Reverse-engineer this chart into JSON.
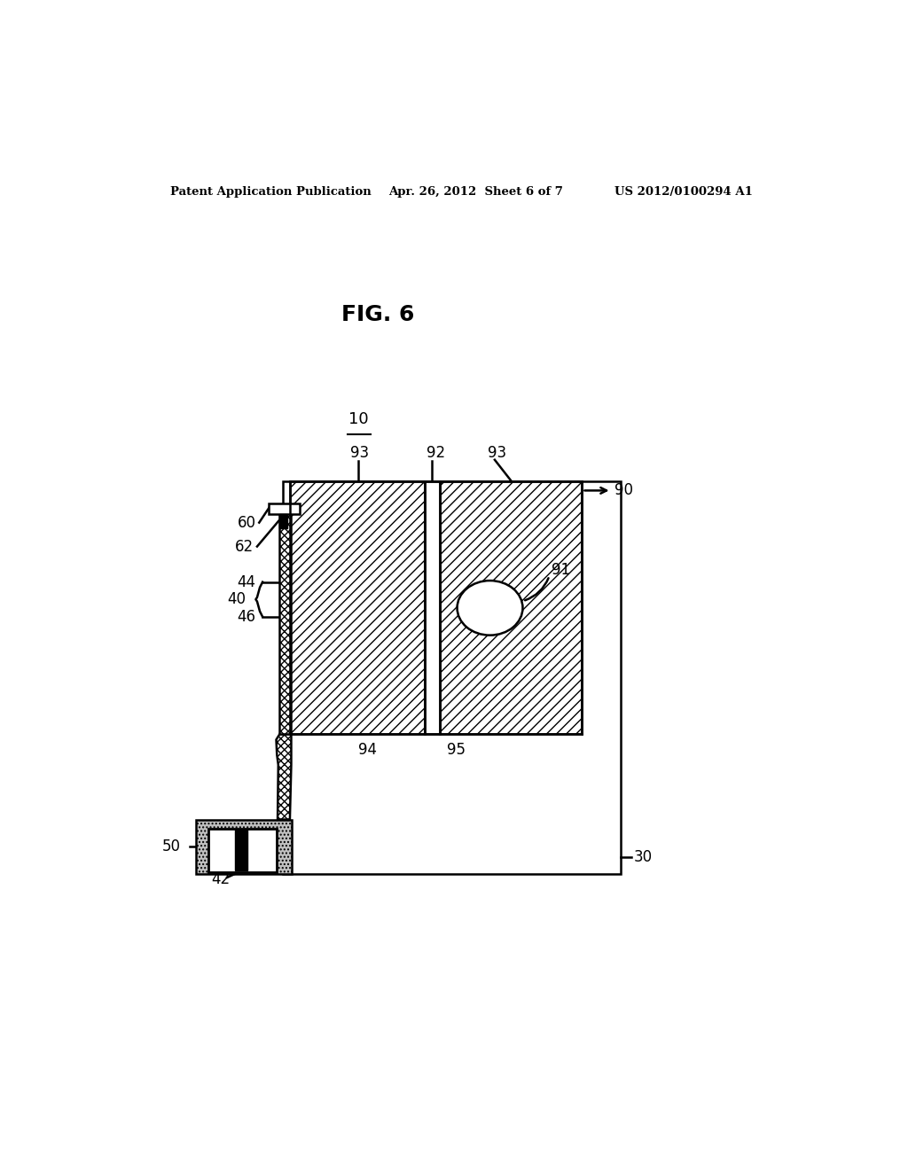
{
  "bg_color": "#ffffff",
  "header_left": "Patent Application Publication",
  "header_mid": "Apr. 26, 2012  Sheet 6 of 7",
  "header_right": "US 2012/0100294 A1",
  "fig_label": "FIG. 6",
  "label_10": "10",
  "label_30": "30",
  "label_40": "40",
  "label_42": "42",
  "label_44": "44",
  "label_46": "46",
  "label_50": "50",
  "label_60": "60",
  "label_62": "62",
  "label_90": "90",
  "label_91": "91",
  "label_92": "92",
  "label_93a": "93",
  "label_93b": "93",
  "label_94": "94",
  "label_95": "95",
  "line_color": "#000000"
}
